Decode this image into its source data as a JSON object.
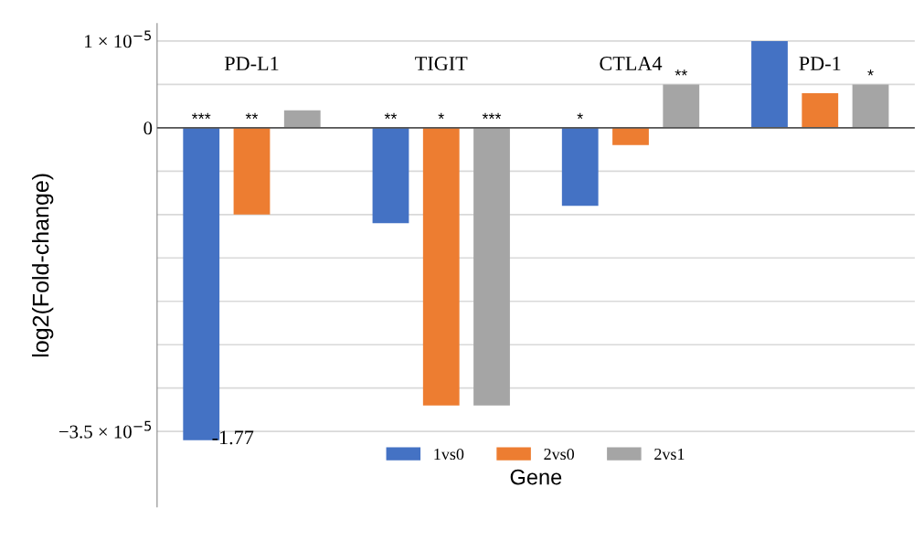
{
  "chart_data": {
    "type": "bar",
    "ylabel": "log2(Fold-change)",
    "xlabel": "Gene",
    "categories": [
      "PD-L1",
      "TIGIT",
      "CTLA4",
      "PD-1"
    ],
    "series": [
      {
        "name": "1vs0",
        "color": "#4472c4",
        "values": [
          -3.6e-05,
          -1.1e-05,
          -9e-06,
          1e-05
        ],
        "value_labels": [
          "***",
          "**",
          "*",
          null
        ]
      },
      {
        "name": "2vs0",
        "color": "#ed7d31",
        "values": [
          -1e-05,
          -3.2e-05,
          -2e-06,
          4e-06
        ],
        "value_labels": [
          "**",
          "*",
          null,
          null
        ]
      },
      {
        "name": "2vs1",
        "color": "#a5a5a5",
        "values": [
          2e-06,
          -3.2e-05,
          5e-06,
          5e-06
        ],
        "value_labels": [
          null,
          "***",
          "**",
          "*"
        ]
      }
    ],
    "ylim": [
      -4.37e-05,
      1.2e-05
    ],
    "yticks": [
      {
        "value": 1e-05,
        "label": "1 × 10$^{−5}$"
      },
      {
        "value": 5e-06,
        "label": null
      },
      0,
      {
        "value": -5e-06,
        "label": null
      },
      {
        "value": -1e-05,
        "label": null
      },
      {
        "value": -1.5e-05,
        "label": null
      },
      {
        "value": -2e-05,
        "label": null
      },
      {
        "value": -2.5e-05,
        "label": null
      },
      {
        "value": -3e-05,
        "label": null
      },
      {
        "value": -3.5e-05,
        "label": "−3.5 × 10$^{−5}$"
      }
    ],
    "grid": "y",
    "legend": "bottom",
    "ref_lines": [
      {
        "axis": "y",
        "value": 0,
        "color": "#555555"
      }
    ],
    "annotations": [
      "-1.77"
    ]
  }
}
